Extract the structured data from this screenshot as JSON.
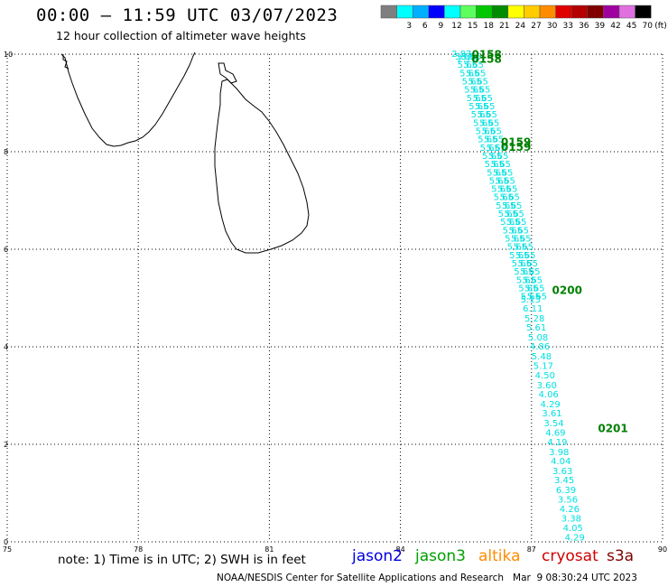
{
  "header": {
    "title": "00:00 – 11:59 UTC 03/07/2023",
    "subtitle": "12 hour collection of altimeter wave heights"
  },
  "colorbar": {
    "unit": "(ft)",
    "swatches": [
      {
        "label": "",
        "color": "#7f7f7f"
      },
      {
        "label": "3",
        "color": "#00ffff"
      },
      {
        "label": "6",
        "color": "#00b0ff"
      },
      {
        "label": "9",
        "color": "#0000ff"
      },
      {
        "label": "12",
        "color": "#00ffff"
      },
      {
        "label": "15",
        "color": "#5dff5d"
      },
      {
        "label": "18",
        "color": "#00c800"
      },
      {
        "label": "21",
        "color": "#008c00"
      },
      {
        "label": "24",
        "color": "#ffff00"
      },
      {
        "label": "27",
        "color": "#ffcc00"
      },
      {
        "label": "30",
        "color": "#ff8c00"
      },
      {
        "label": "33",
        "color": "#e00000"
      },
      {
        "label": "36",
        "color": "#b40000"
      },
      {
        "label": "39",
        "color": "#800000"
      },
      {
        "label": "42",
        "color": "#a000a0"
      },
      {
        "label": "45",
        "color": "#e070e0"
      },
      {
        "label": "70",
        "color": "#000000"
      }
    ]
  },
  "map": {
    "lon_range": [
      75,
      90
    ],
    "lat_range": [
      0,
      10
    ],
    "x_ticks": [
      "75",
      "78",
      "81",
      "84",
      "87",
      "90"
    ],
    "y_ticks": [
      "0",
      "2",
      "4",
      "6",
      "8",
      "10"
    ],
    "grid": true,
    "point_color": "#00e0e0",
    "time_color": "#008000"
  },
  "track": {
    "points": [
      {
        "lon": 86.75,
        "lat": 4.91,
        "value": "5.13"
      },
      {
        "lon": 86.8,
        "lat": 4.72,
        "value": "6.11"
      },
      {
        "lon": 86.84,
        "lat": 4.52,
        "value": "5.28"
      },
      {
        "lon": 86.88,
        "lat": 4.33,
        "value": "5.61"
      },
      {
        "lon": 86.92,
        "lat": 4.13,
        "value": "5.08"
      },
      {
        "lon": 86.96,
        "lat": 3.94,
        "value": "4.86"
      },
      {
        "lon": 87.0,
        "lat": 3.74,
        "value": "5.48"
      },
      {
        "lon": 87.04,
        "lat": 3.55,
        "value": "5.17"
      },
      {
        "lon": 87.08,
        "lat": 3.35,
        "value": "4.50"
      },
      {
        "lon": 87.12,
        "lat": 3.15,
        "value": "3.60"
      },
      {
        "lon": 87.16,
        "lat": 2.96,
        "value": "4.06"
      },
      {
        "lon": 87.2,
        "lat": 2.76,
        "value": "4.29"
      },
      {
        "lon": 87.24,
        "lat": 2.57,
        "value": "3.61"
      },
      {
        "lon": 87.28,
        "lat": 2.37,
        "value": "3.54"
      },
      {
        "lon": 87.32,
        "lat": 2.18,
        "value": "4.69"
      },
      {
        "lon": 87.36,
        "lat": 1.98,
        "value": "4.19"
      },
      {
        "lon": 87.4,
        "lat": 1.78,
        "value": "3.98"
      },
      {
        "lon": 87.44,
        "lat": 1.59,
        "value": "4.04"
      },
      {
        "lon": 87.48,
        "lat": 1.39,
        "value": "3.63"
      },
      {
        "lon": 87.52,
        "lat": 1.2,
        "value": "3.45"
      },
      {
        "lon": 87.56,
        "lat": 1.0,
        "value": "6.39"
      },
      {
        "lon": 87.6,
        "lat": 0.81,
        "value": "3.56"
      },
      {
        "lon": 87.64,
        "lat": 0.61,
        "value": "4.26"
      },
      {
        "lon": 87.68,
        "lat": 0.42,
        "value": "3.38"
      },
      {
        "lon": 87.72,
        "lat": 0.22,
        "value": "4.05"
      },
      {
        "lon": 87.76,
        "lat": 0.03,
        "value": "4.29"
      }
    ],
    "dense_overlap": {
      "from": [
        85.25,
        10.0
      ],
      "to": [
        86.75,
        5.08
      ],
      "value": "5.65"
    },
    "first_value": "2.87",
    "second_value": "2.78",
    "time_labels": [
      {
        "lon": 85.63,
        "lat": 9.92,
        "text": "0158"
      },
      {
        "lon": 85.63,
        "lat": 9.82,
        "text": "0158"
      },
      {
        "lon": 86.3,
        "lat": 8.12,
        "text": "0159"
      },
      {
        "lon": 86.3,
        "lat": 8.02,
        "text": "0159"
      },
      {
        "lon": 87.47,
        "lat": 5.08,
        "text": "0200"
      },
      {
        "lon": 88.52,
        "lat": 2.25,
        "text": "0201"
      }
    ]
  },
  "legend": {
    "note": "note: 1) Time is in UTC; 2) SWH is in feet",
    "satellites": [
      {
        "name": "jason2",
        "color": "#0000e0"
      },
      {
        "name": "jason3",
        "color": "#00a000"
      },
      {
        "name": "altika",
        "color": "#ff8c00"
      },
      {
        "name": "cryosat",
        "color": "#d00000"
      },
      {
        "name": "s3a",
        "color": "#800000"
      }
    ]
  },
  "footer": {
    "credit": "NOAA/NESDIS Center for Satellite Applications and Research   Mar  9 08:30:24 UTC 2023"
  }
}
